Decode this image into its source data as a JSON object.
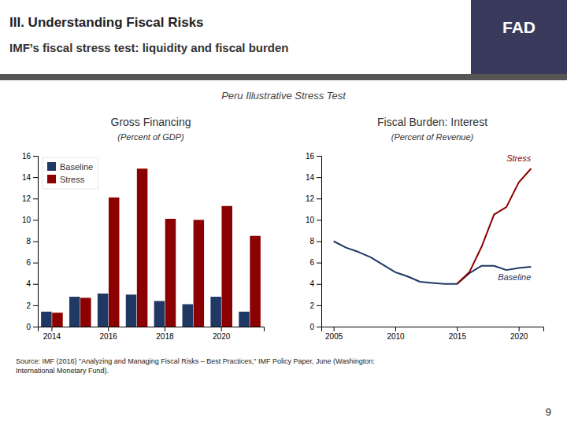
{
  "title": "III. Understanding Fiscal Risks",
  "subtitle": "IMF’s fiscal stress test: liquidity and fiscal burden",
  "annotations": [
    "Peru Illustrative Stress Test",
    "FAD",
    "Source: IMF (2016) \"Analyzing and Managing Fiscal Risks – Best Practices,\" IMF Policy Paper, June (Washington:\nInternational Monetary Fund).",
    "9"
  ],
  "chart_data": [
    {
      "type": "bar",
      "title": "Gross Financing",
      "subtitle": "(Percent of GDP)",
      "categories": [
        2014,
        null,
        2016,
        null,
        2018,
        null,
        2020,
        null
      ],
      "series": [
        {
          "name": "Baseline",
          "color": "#1f3864",
          "values": [
            1.4,
            2.8,
            3.1,
            3.0,
            2.4,
            2.1,
            2.8,
            1.4
          ]
        },
        {
          "name": "Stress",
          "color": "#8b0000",
          "values": [
            1.3,
            2.7,
            12.1,
            14.8,
            10.1,
            10.0,
            11.3,
            8.5
          ]
        }
      ],
      "ylim": [
        0,
        16
      ],
      "yticks": [
        0,
        2,
        4,
        6,
        8,
        10,
        12,
        14,
        16
      ],
      "legend": "top-left",
      "grid": false
    },
    {
      "type": "line",
      "title": "Fiscal Burden: Interest",
      "subtitle": "(Percent of Revenue)",
      "series": [
        {
          "name": "Baseline",
          "color": "#1f3864",
          "x": [
            2005,
            2006,
            2007,
            2008,
            2009,
            2010,
            2011,
            2012,
            2013,
            2014,
            2015,
            2016,
            2017,
            2018,
            2019,
            2020,
            2021
          ],
          "values": [
            8.0,
            7.4,
            7.0,
            6.5,
            5.8,
            5.1,
            4.7,
            4.2,
            4.1,
            4.0,
            4.0,
            5.0,
            5.7,
            5.7,
            5.3,
            5.5,
            5.6
          ]
        },
        {
          "name": "Stress",
          "color": "#8b0000",
          "x": [
            2015,
            2016,
            2017,
            2018,
            2019,
            2020,
            2021
          ],
          "values": [
            4.0,
            5.1,
            7.5,
            10.5,
            11.2,
            13.5,
            14.8
          ]
        }
      ],
      "xlim": [
        2004,
        2022
      ],
      "xticks": [
        2005,
        2010,
        2015,
        2020
      ],
      "ylim": [
        0,
        16
      ],
      "yticks": [
        0,
        2,
        4,
        6,
        8,
        10,
        12,
        14,
        16
      ],
      "grid": false
    }
  ]
}
